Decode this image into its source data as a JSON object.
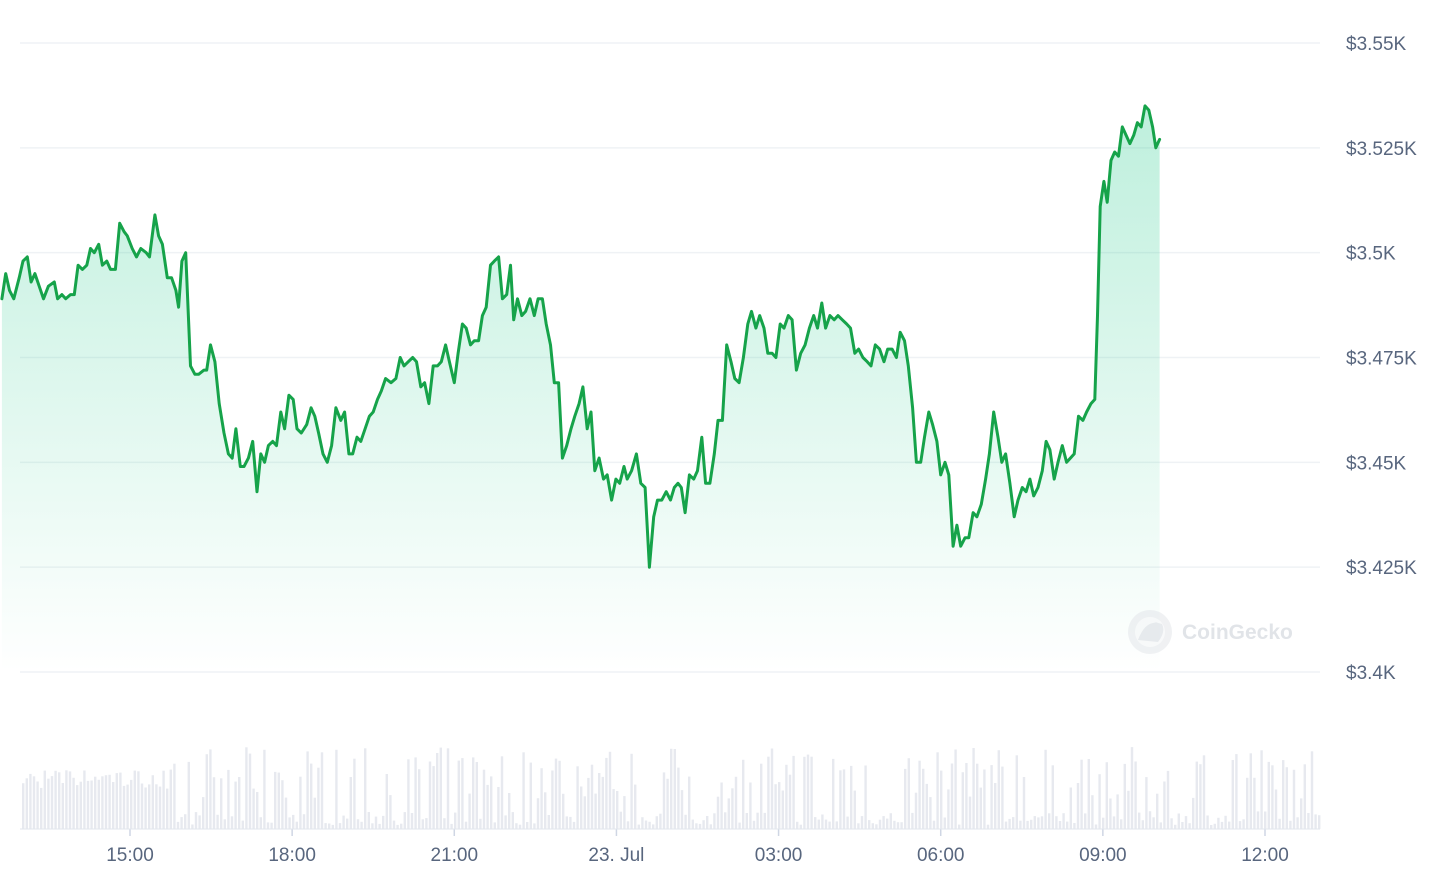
{
  "chart_data": {
    "type": "area",
    "title": "",
    "xlabel": "",
    "ylabel": "",
    "ylim": [
      3400,
      3550
    ],
    "y_ticks": [
      {
        "value": 3550,
        "label": "$3.55K"
      },
      {
        "value": 3525,
        "label": "$3.525K"
      },
      {
        "value": 3500,
        "label": "$3.5K"
      },
      {
        "value": 3475,
        "label": "$3.475K"
      },
      {
        "value": 3450,
        "label": "$3.45K"
      },
      {
        "value": 3425,
        "label": "$3.425K"
      },
      {
        "value": 3400,
        "label": "$3.4K"
      }
    ],
    "x_ticks": [
      {
        "hour": 15,
        "label": "15:00"
      },
      {
        "hour": 18,
        "label": "18:00"
      },
      {
        "hour": 21,
        "label": "21:00"
      },
      {
        "hour": 24,
        "label": "23. Jul"
      },
      {
        "hour": 27,
        "label": "03:00"
      },
      {
        "hour": 30,
        "label": "06:00"
      },
      {
        "hour": 33,
        "label": "09:00"
      },
      {
        "hour": 36,
        "label": "12:00"
      }
    ],
    "series": [
      {
        "color": "#16c784",
        "line_color": "#16a34a",
        "points": [
          [
            12.63,
            3489
          ],
          [
            12.7,
            3495
          ],
          [
            12.77,
            3491
          ],
          [
            12.85,
            3489
          ],
          [
            12.95,
            3494
          ],
          [
            13.02,
            3498
          ],
          [
            13.1,
            3499
          ],
          [
            13.17,
            3493
          ],
          [
            13.24,
            3495
          ],
          [
            13.32,
            3492
          ],
          [
            13.4,
            3489
          ],
          [
            13.49,
            3492
          ],
          [
            13.6,
            3493
          ],
          [
            13.66,
            3489
          ],
          [
            13.74,
            3490
          ],
          [
            13.81,
            3489
          ],
          [
            13.9,
            3490
          ],
          [
            13.97,
            3490
          ],
          [
            14.04,
            3497
          ],
          [
            14.12,
            3496
          ],
          [
            14.2,
            3497
          ],
          [
            14.27,
            3501
          ],
          [
            14.34,
            3500
          ],
          [
            14.42,
            3502
          ],
          [
            14.49,
            3497
          ],
          [
            14.57,
            3498
          ],
          [
            14.64,
            3496
          ],
          [
            14.73,
            3496
          ],
          [
            14.81,
            3507
          ],
          [
            14.89,
            3505
          ],
          [
            14.95,
            3504
          ],
          [
            15.04,
            3501
          ],
          [
            15.12,
            3499
          ],
          [
            15.2,
            3501
          ],
          [
            15.3,
            3500
          ],
          [
            15.36,
            3499
          ],
          [
            15.46,
            3509
          ],
          [
            15.53,
            3504
          ],
          [
            15.6,
            3502
          ],
          [
            15.69,
            3494
          ],
          [
            15.77,
            3494
          ],
          [
            15.85,
            3491
          ],
          [
            15.9,
            3487
          ],
          [
            15.96,
            3498
          ],
          [
            16.03,
            3500
          ],
          [
            16.12,
            3473
          ],
          [
            16.2,
            3471
          ],
          [
            16.27,
            3471
          ],
          [
            16.37,
            3472
          ],
          [
            16.42,
            3472
          ],
          [
            16.49,
            3478
          ],
          [
            16.57,
            3474
          ],
          [
            16.65,
            3464
          ],
          [
            16.74,
            3457
          ],
          [
            16.82,
            3452
          ],
          [
            16.89,
            3451
          ],
          [
            16.96,
            3458
          ],
          [
            17.04,
            3449
          ],
          [
            17.11,
            3449
          ],
          [
            17.19,
            3451
          ],
          [
            17.27,
            3455
          ],
          [
            17.35,
            3443
          ],
          [
            17.42,
            3452
          ],
          [
            17.49,
            3450
          ],
          [
            17.56,
            3454
          ],
          [
            17.64,
            3455
          ],
          [
            17.71,
            3454
          ],
          [
            17.79,
            3462
          ],
          [
            17.86,
            3458
          ],
          [
            17.94,
            3466
          ],
          [
            18.02,
            3465
          ],
          [
            18.09,
            3458
          ],
          [
            18.17,
            3457
          ],
          [
            18.27,
            3459
          ],
          [
            18.35,
            3463
          ],
          [
            18.42,
            3461
          ],
          [
            18.49,
            3457
          ],
          [
            18.57,
            3452
          ],
          [
            18.65,
            3450
          ],
          [
            18.73,
            3454
          ],
          [
            18.81,
            3463
          ],
          [
            18.9,
            3460
          ],
          [
            18.97,
            3462
          ],
          [
            19.05,
            3452
          ],
          [
            19.12,
            3452
          ],
          [
            19.2,
            3456
          ],
          [
            19.27,
            3455
          ],
          [
            19.35,
            3458
          ],
          [
            19.43,
            3461
          ],
          [
            19.5,
            3462
          ],
          [
            19.58,
            3465
          ],
          [
            19.65,
            3467
          ],
          [
            19.73,
            3470
          ],
          [
            19.83,
            3469
          ],
          [
            19.92,
            3470
          ],
          [
            20.0,
            3475
          ],
          [
            20.07,
            3473
          ],
          [
            20.15,
            3474
          ],
          [
            20.23,
            3475
          ],
          [
            20.3,
            3474
          ],
          [
            20.38,
            3468
          ],
          [
            20.45,
            3469
          ],
          [
            20.53,
            3464
          ],
          [
            20.61,
            3473
          ],
          [
            20.69,
            3473
          ],
          [
            20.76,
            3474
          ],
          [
            20.84,
            3478
          ],
          [
            20.91,
            3474
          ],
          [
            21.0,
            3469
          ],
          [
            21.07,
            3476
          ],
          [
            21.15,
            3483
          ],
          [
            21.22,
            3482
          ],
          [
            21.3,
            3478
          ],
          [
            21.37,
            3479
          ],
          [
            21.45,
            3479
          ],
          [
            21.52,
            3485
          ],
          [
            21.59,
            3487
          ],
          [
            21.67,
            3497
          ],
          [
            21.74,
            3498
          ],
          [
            21.82,
            3499
          ],
          [
            21.89,
            3489
          ],
          [
            21.97,
            3490
          ],
          [
            22.04,
            3497
          ],
          [
            22.1,
            3484
          ],
          [
            22.17,
            3489
          ],
          [
            22.25,
            3485
          ],
          [
            22.32,
            3486
          ],
          [
            22.4,
            3489
          ],
          [
            22.48,
            3485
          ],
          [
            22.55,
            3489
          ],
          [
            22.63,
            3489
          ],
          [
            22.7,
            3483
          ],
          [
            22.78,
            3478
          ],
          [
            22.85,
            3469
          ],
          [
            22.93,
            3469
          ],
          [
            23.0,
            3451
          ],
          [
            23.08,
            3454
          ],
          [
            23.16,
            3458
          ],
          [
            23.23,
            3461
          ],
          [
            23.31,
            3464
          ],
          [
            23.38,
            3468
          ],
          [
            23.46,
            3458
          ],
          [
            23.53,
            3462
          ],
          [
            23.6,
            3448
          ],
          [
            23.68,
            3451
          ],
          [
            23.76,
            3446
          ],
          [
            23.83,
            3447
          ],
          [
            23.91,
            3441
          ],
          [
            23.99,
            3446
          ],
          [
            24.06,
            3445
          ],
          [
            24.14,
            3449
          ],
          [
            24.2,
            3446
          ],
          [
            24.28,
            3448
          ],
          [
            24.37,
            3452
          ],
          [
            24.45,
            3445
          ],
          [
            24.53,
            3444
          ],
          [
            24.61,
            3425
          ],
          [
            24.69,
            3437
          ],
          [
            24.76,
            3441
          ],
          [
            24.84,
            3441
          ],
          [
            24.92,
            3443
          ],
          [
            25.0,
            3441
          ],
          [
            25.07,
            3444
          ],
          [
            25.14,
            3445
          ],
          [
            25.2,
            3444
          ],
          [
            25.27,
            3438
          ],
          [
            25.35,
            3447
          ],
          [
            25.43,
            3446
          ],
          [
            25.5,
            3448
          ],
          [
            25.58,
            3456
          ],
          [
            25.65,
            3445
          ],
          [
            25.73,
            3445
          ],
          [
            25.81,
            3452
          ],
          [
            25.88,
            3460
          ],
          [
            25.96,
            3460
          ],
          [
            26.04,
            3478
          ],
          [
            26.12,
            3474
          ],
          [
            26.19,
            3470
          ],
          [
            26.27,
            3469
          ],
          [
            26.35,
            3475
          ],
          [
            26.43,
            3483
          ],
          [
            26.5,
            3486
          ],
          [
            26.58,
            3482
          ],
          [
            26.65,
            3485
          ],
          [
            26.73,
            3482
          ],
          [
            26.8,
            3476
          ],
          [
            26.88,
            3476
          ],
          [
            26.95,
            3475
          ],
          [
            27.03,
            3483
          ],
          [
            27.1,
            3482
          ],
          [
            27.18,
            3485
          ],
          [
            27.25,
            3484
          ],
          [
            27.33,
            3472
          ],
          [
            27.41,
            3476
          ],
          [
            27.49,
            3478
          ],
          [
            27.57,
            3482
          ],
          [
            27.65,
            3485
          ],
          [
            27.72,
            3482
          ],
          [
            27.8,
            3488
          ],
          [
            27.87,
            3482
          ],
          [
            27.95,
            3485
          ],
          [
            28.03,
            3484
          ],
          [
            28.1,
            3485
          ],
          [
            28.18,
            3484
          ],
          [
            28.26,
            3483
          ],
          [
            28.33,
            3482
          ],
          [
            28.41,
            3476
          ],
          [
            28.48,
            3477
          ],
          [
            28.56,
            3475
          ],
          [
            28.64,
            3474
          ],
          [
            28.71,
            3473
          ],
          [
            28.79,
            3478
          ],
          [
            28.87,
            3477
          ],
          [
            28.95,
            3474
          ],
          [
            29.02,
            3477
          ],
          [
            29.1,
            3477
          ],
          [
            29.18,
            3475
          ],
          [
            29.25,
            3481
          ],
          [
            29.33,
            3479
          ],
          [
            29.4,
            3473
          ],
          [
            29.48,
            3463
          ],
          [
            29.55,
            3450
          ],
          [
            29.63,
            3450
          ],
          [
            29.7,
            3456
          ],
          [
            29.78,
            3462
          ],
          [
            29.85,
            3459
          ],
          [
            29.93,
            3455
          ],
          [
            30.0,
            3447
          ],
          [
            30.08,
            3450
          ],
          [
            30.15,
            3447
          ],
          [
            30.23,
            3430
          ],
          [
            30.3,
            3435
          ],
          [
            30.37,
            3430
          ],
          [
            30.45,
            3432
          ],
          [
            30.52,
            3432
          ],
          [
            30.6,
            3438
          ],
          [
            30.67,
            3437
          ],
          [
            30.75,
            3440
          ],
          [
            30.83,
            3446
          ],
          [
            30.9,
            3452
          ],
          [
            30.98,
            3462
          ],
          [
            31.06,
            3456
          ],
          [
            31.13,
            3450
          ],
          [
            31.2,
            3452
          ],
          [
            31.28,
            3445
          ],
          [
            31.36,
            3437
          ],
          [
            31.43,
            3441
          ],
          [
            31.51,
            3444
          ],
          [
            31.58,
            3443
          ],
          [
            31.65,
            3446
          ],
          [
            31.72,
            3442
          ],
          [
            31.8,
            3444
          ],
          [
            31.88,
            3448
          ],
          [
            31.95,
            3455
          ],
          [
            32.02,
            3453
          ],
          [
            32.1,
            3446
          ],
          [
            32.17,
            3450
          ],
          [
            32.25,
            3454
          ],
          [
            32.33,
            3450
          ],
          [
            32.4,
            3451
          ],
          [
            32.47,
            3452
          ],
          [
            32.55,
            3461
          ],
          [
            32.63,
            3460
          ],
          [
            32.7,
            3462
          ],
          [
            32.78,
            3464
          ],
          [
            32.85,
            3465
          ],
          [
            32.9,
            3485
          ],
          [
            32.95,
            3511
          ],
          [
            33.02,
            3517
          ],
          [
            33.08,
            3512
          ],
          [
            33.15,
            3522
          ],
          [
            33.22,
            3524
          ],
          [
            33.29,
            3523
          ],
          [
            33.36,
            3530
          ],
          [
            33.43,
            3528
          ],
          [
            33.5,
            3526
          ],
          [
            33.57,
            3528
          ],
          [
            33.64,
            3531
          ],
          [
            33.71,
            3530
          ],
          [
            33.78,
            3535
          ],
          [
            33.85,
            3534
          ],
          [
            33.92,
            3530
          ],
          [
            33.98,
            3525
          ],
          [
            34.05,
            3527
          ]
        ]
      }
    ],
    "volume_description": "Gray volume bars along bottom (unlabeled)"
  },
  "watermark": {
    "text": "CoinGecko",
    "icon": "gecko-icon"
  }
}
